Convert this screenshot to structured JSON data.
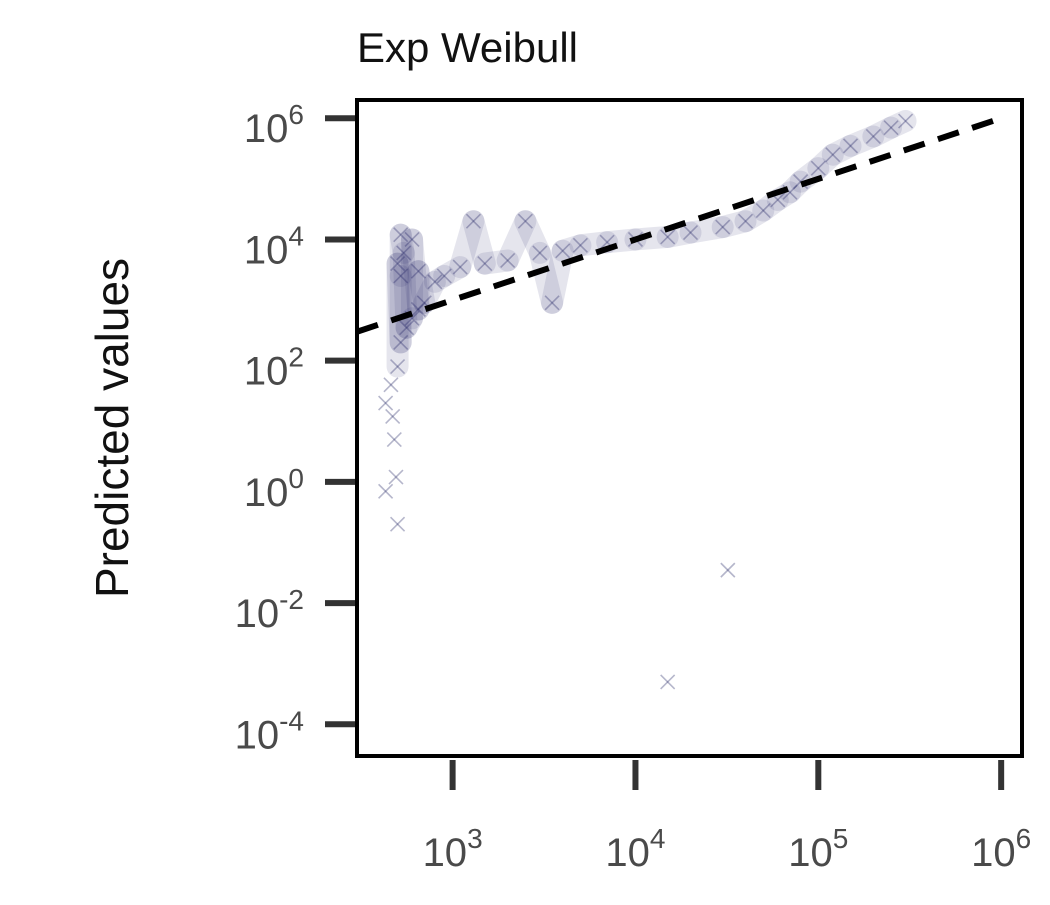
{
  "chart_data": {
    "type": "scatter",
    "title": "Exp Weibull",
    "xlabel": "",
    "ylabel": "Predicted values",
    "xscale": "log",
    "yscale": "log",
    "xlim": [
      300,
      1300000
    ],
    "ylim": [
      3e-05,
      2000000
    ],
    "x_ticks": [
      {
        "value": 1000,
        "base": "10",
        "exp": "3"
      },
      {
        "value": 10000,
        "base": "10",
        "exp": "4"
      },
      {
        "value": 100000,
        "base": "10",
        "exp": "5"
      },
      {
        "value": 1000000,
        "base": "10",
        "exp": "6"
      }
    ],
    "y_ticks": [
      {
        "value": 0.0001,
        "base": "10",
        "exp": "-4"
      },
      {
        "value": 0.01,
        "base": "10",
        "exp": "-2"
      },
      {
        "value": 1,
        "base": "10",
        "exp": "0"
      },
      {
        "value": 100,
        "base": "10",
        "exp": "2"
      },
      {
        "value": 10000,
        "base": "10",
        "exp": "4"
      },
      {
        "value": 1000000,
        "base": "10",
        "exp": "6"
      }
    ],
    "grid": false,
    "marker": "x",
    "point_color": "#2b2d6b",
    "reference_line": {
      "style": "dashed",
      "color": "#000000",
      "x": [
        300,
        1000000
      ],
      "y": [
        300,
        1000000
      ]
    },
    "series": [
      {
        "points": [
          [
            430,
            20
          ],
          [
            430,
            0.7
          ],
          [
            500,
            0.2
          ],
          [
            490,
            1.2
          ],
          [
            480,
            5
          ],
          [
            470,
            12
          ],
          [
            460,
            40
          ],
          [
            500,
            80
          ],
          [
            520,
            200
          ],
          [
            560,
            350
          ],
          [
            600,
            500
          ],
          [
            650,
            700
          ],
          [
            700,
            900
          ],
          [
            520,
            2500
          ],
          [
            500,
            4000
          ],
          [
            540,
            6000
          ],
          [
            520,
            12000
          ],
          [
            600,
            10000
          ],
          [
            650,
            3000
          ],
          [
            800,
            2000
          ],
          [
            900,
            2500
          ],
          [
            1100,
            3500
          ],
          [
            1300,
            20000
          ],
          [
            1500,
            4000
          ],
          [
            2000,
            4500
          ],
          [
            2500,
            20000
          ],
          [
            3000,
            6000
          ],
          [
            3500,
            900
          ],
          [
            4000,
            6500
          ],
          [
            5000,
            8000
          ],
          [
            7000,
            9000
          ],
          [
            10000,
            10000
          ],
          [
            15000,
            11000
          ],
          [
            20000,
            13000
          ],
          [
            30000,
            16000
          ],
          [
            40000,
            20000
          ],
          [
            50000,
            30000
          ],
          [
            60000,
            45000
          ],
          [
            70000,
            60000
          ],
          [
            80000,
            90000
          ],
          [
            100000,
            150000
          ],
          [
            120000,
            250000
          ],
          [
            150000,
            350000
          ],
          [
            200000,
            500000
          ],
          [
            250000,
            700000
          ],
          [
            300000,
            900000
          ],
          [
            32000,
            0.035
          ],
          [
            15000,
            0.0005
          ]
        ]
      }
    ]
  }
}
